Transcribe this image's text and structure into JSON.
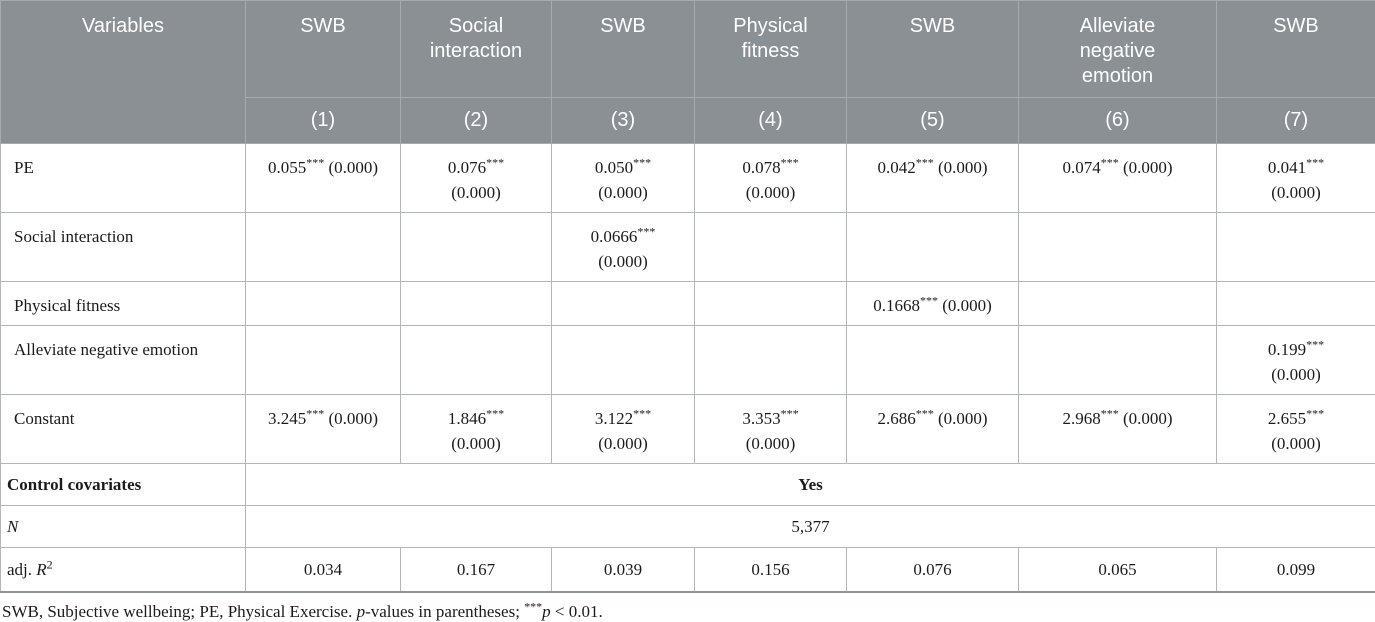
{
  "colors": {
    "header_bg": "#8b9095",
    "header_line": "#a6abaf",
    "header_top": "#9da2a6",
    "body_border": "#b3b6b8",
    "strong_border": "#8f9296",
    "text": "#1b1b1b",
    "header_text": "#ffffff"
  },
  "table": {
    "corner_header": "Variables",
    "columns": [
      {
        "dv": [
          "SWB"
        ],
        "num": "(1)"
      },
      {
        "dv": [
          "Social",
          "interaction"
        ],
        "num": "(2)"
      },
      {
        "dv": [
          "SWB"
        ],
        "num": "(3)"
      },
      {
        "dv": [
          "Physical",
          "fitness"
        ],
        "num": "(4)"
      },
      {
        "dv": [
          "SWB"
        ],
        "num": "(5)"
      },
      {
        "dv": [
          "Alleviate",
          "negative",
          "emotion"
        ],
        "num": "(6)"
      },
      {
        "dv": [
          "SWB"
        ],
        "num": "(7)"
      }
    ],
    "rows": [
      {
        "type": "coef",
        "label": "PE",
        "cells": [
          [
            "0.055*** (0.000)"
          ],
          [
            "0.076***",
            "(0.000)"
          ],
          [
            "0.050***",
            "(0.000)"
          ],
          [
            "0.078***",
            "(0.000)"
          ],
          [
            "0.042*** (0.000)"
          ],
          [
            "0.074*** (0.000)"
          ],
          [
            "0.041***",
            "(0.000)"
          ]
        ]
      },
      {
        "type": "coef",
        "label": "Social interaction",
        "cells": [
          [],
          [],
          [
            "0.0666***",
            "(0.000)"
          ],
          [],
          [],
          [],
          []
        ]
      },
      {
        "type": "coef",
        "label": "Physical fitness",
        "cells": [
          [],
          [],
          [],
          [],
          [
            "0.1668*** (0.000)"
          ],
          [],
          []
        ]
      },
      {
        "type": "coef",
        "label": "Alleviate negative emotion",
        "cells": [
          [],
          [],
          [],
          [],
          [],
          [],
          [
            "0.199***",
            "(0.000)"
          ]
        ]
      },
      {
        "type": "coef",
        "label": "Constant",
        "cells": [
          [
            "3.245*** (0.000)"
          ],
          [
            "1.846***",
            "(0.000)"
          ],
          [
            "3.122***",
            "(0.000)"
          ],
          [
            "3.353***",
            "(0.000)"
          ],
          [
            "2.686*** (0.000)"
          ],
          [
            "2.968*** (0.000)"
          ],
          [
            "2.655***",
            "(0.000)"
          ]
        ]
      },
      {
        "type": "span",
        "label": "Control covariates",
        "label_style": "bold",
        "value": "Yes",
        "value_style": "bold"
      },
      {
        "type": "span",
        "label": "N",
        "label_style": "italic",
        "value": "5,377",
        "value_style": "normal"
      },
      {
        "type": "coef",
        "stat": true,
        "label": "adj. R2",
        "label_segments": [
          {
            "t": "adj. "
          },
          {
            "t": "R",
            "i": true
          },
          {
            "t": "2",
            "sup": true
          }
        ],
        "cells": [
          [
            "0.034"
          ],
          [
            "0.167"
          ],
          [
            "0.039"
          ],
          [
            "0.156"
          ],
          [
            "0.076"
          ],
          [
            "0.065"
          ],
          [
            "0.099"
          ]
        ]
      }
    ],
    "footnote_segments": [
      {
        "t": "SWB, Subjective wellbeing; PE, Physical Exercise. "
      },
      {
        "t": "p",
        "i": true
      },
      {
        "t": "-values in parentheses; "
      },
      {
        "t": "***",
        "sup": true
      },
      {
        "t": "p",
        "i": true
      },
      {
        "t": " < 0.01."
      }
    ]
  }
}
